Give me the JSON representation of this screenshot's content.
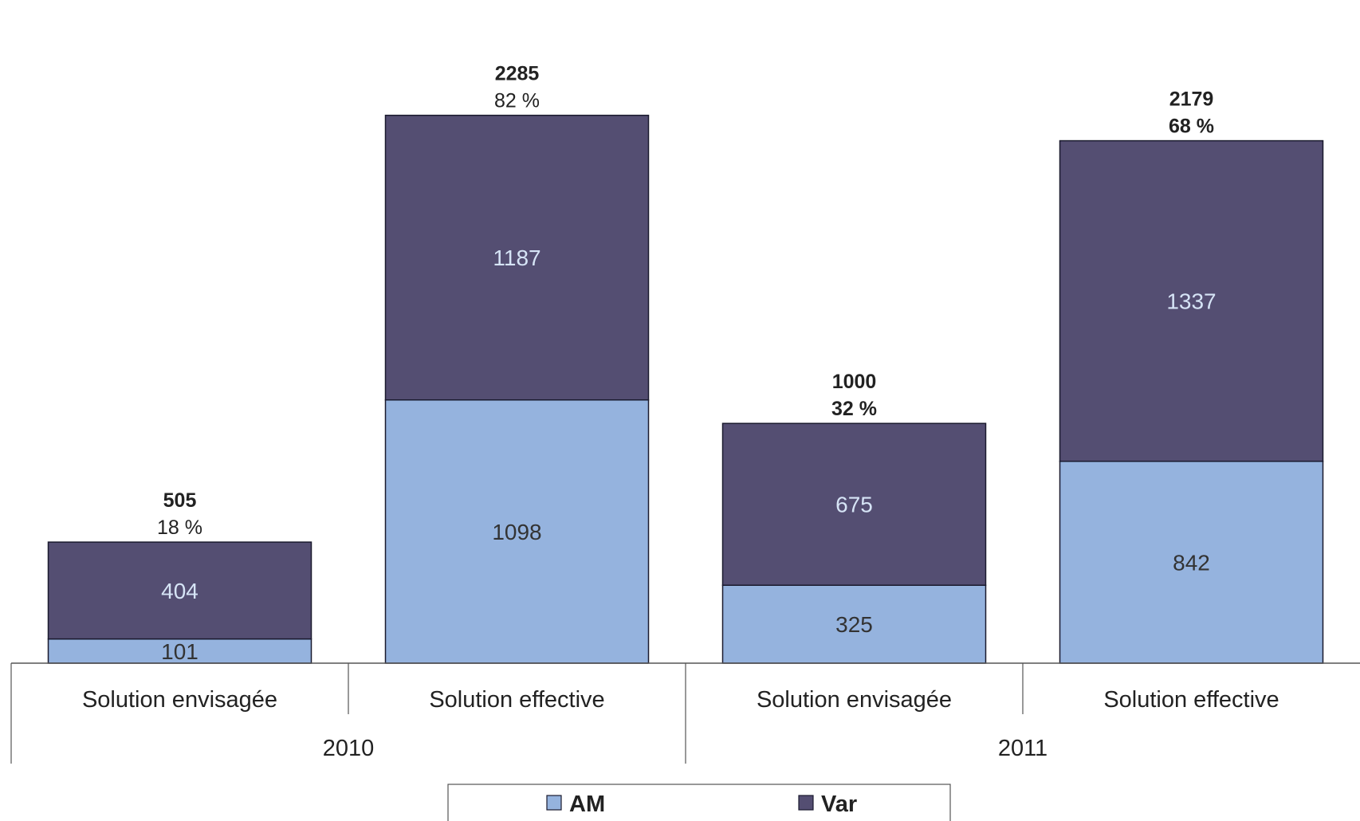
{
  "chart_data": {
    "type": "bar",
    "stacked": true,
    "categories": [
      "Solution envisagée",
      "Solution effective",
      "Solution envisagée",
      "Solution effective"
    ],
    "groups": [
      {
        "label": "2010",
        "categories": [
          0,
          1
        ]
      },
      {
        "label": "2011",
        "categories": [
          2,
          3
        ]
      }
    ],
    "series": [
      {
        "name": "AM",
        "values": [
          101,
          1098,
          325,
          842
        ],
        "color": "#95b3de",
        "label_color": "#333333"
      },
      {
        "name": "Var",
        "values": [
          404,
          1187,
          675,
          1337
        ],
        "color": "#544e72",
        "label_color": "#d6e4f6"
      }
    ],
    "totals": [
      {
        "value": "505",
        "percent": "18 %",
        "value_bold": true,
        "percent_bold": false
      },
      {
        "value": "2285",
        "percent": "82 %",
        "value_bold": true,
        "percent_bold": false
      },
      {
        "value": "1000",
        "percent": "32 %",
        "value_bold": true,
        "percent_bold": true
      },
      {
        "value": "2179",
        "percent": "68 %",
        "value_bold": true,
        "percent_bold": true
      }
    ],
    "ylim": [
      0,
      2500
    ],
    "grid": false,
    "legend_position": "bottom",
    "title": "",
    "xlabel": "",
    "ylabel": ""
  }
}
